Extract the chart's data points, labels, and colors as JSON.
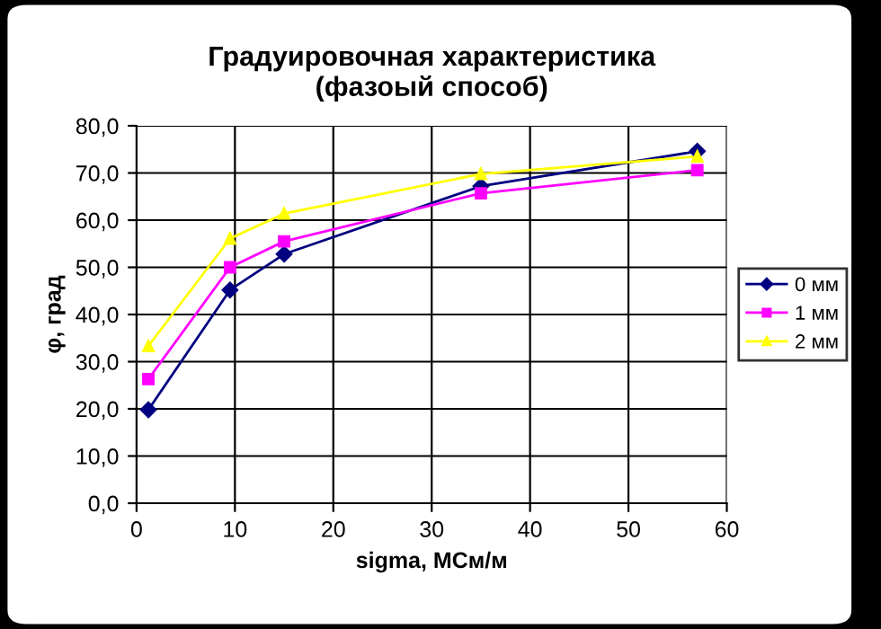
{
  "chart_data": {
    "type": "line",
    "title": "Градуировочная характеристика\n(фазоый способ)",
    "xlabel": "sigma, МСм/м",
    "ylabel": "φ, град",
    "xlim": [
      0,
      60
    ],
    "xticks": [
      0,
      10,
      20,
      30,
      40,
      50,
      60
    ],
    "ylim": [
      0,
      80
    ],
    "yticks": [
      {
        "value": 0,
        "label": "0,0"
      },
      {
        "value": 10,
        "label": "10,0"
      },
      {
        "value": 20,
        "label": "20,0"
      },
      {
        "value": 30,
        "label": "30,0"
      },
      {
        "value": 40,
        "label": "40,0"
      },
      {
        "value": 50,
        "label": "50,0"
      },
      {
        "value": 60,
        "label": "60,0"
      },
      {
        "value": 70,
        "label": "70,0"
      },
      {
        "value": 80,
        "label": "80,0"
      }
    ],
    "x": [
      1.2,
      9.5,
      15,
      35,
      57
    ],
    "series": [
      {
        "name": "0 мм",
        "color": "#000080",
        "marker": "diamond",
        "values": [
          19.8,
          45.2,
          52.8,
          67.2,
          74.6
        ]
      },
      {
        "name": "1 мм",
        "color": "#ff00ff",
        "marker": "square",
        "values": [
          26.3,
          50.0,
          55.5,
          65.7,
          70.6
        ]
      },
      {
        "name": "2 мм",
        "color": "#ffff00",
        "marker": "triangle",
        "values": [
          33.3,
          56.1,
          61.4,
          69.8,
          73.5
        ]
      }
    ],
    "grid": true,
    "legend": "right",
    "line_style": "solid"
  }
}
